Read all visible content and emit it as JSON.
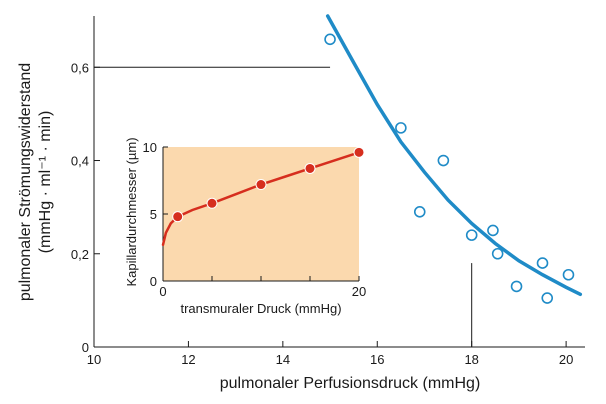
{
  "chart_data": [
    {
      "type": "scatter",
      "xlabel": "pulmonaler Perfusionsdruck (mmHg)",
      "ylabel_line1": "pulmonaler Strömungswiderstand",
      "ylabel_line2": "(mmHg · ml⁻¹ · min)",
      "xlim": [
        10,
        20.4
      ],
      "ylim": [
        0,
        0.71
      ],
      "x_ticks": [
        {
          "v": 10,
          "label": "10"
        },
        {
          "v": 12,
          "label": "12"
        },
        {
          "v": 14,
          "label": "14"
        },
        {
          "v": 16,
          "label": "16"
        },
        {
          "v": 18,
          "label": "18"
        },
        {
          "v": 20,
          "label": "20"
        }
      ],
      "y_ticks": [
        {
          "v": 0,
          "label": "0"
        },
        {
          "v": 0.2,
          "label": "0,2"
        },
        {
          "v": 0.4,
          "label": "0,4"
        },
        {
          "v": 0.6,
          "label": "0,6"
        }
      ],
      "points": [
        {
          "x": 15.0,
          "y": 0.66
        },
        {
          "x": 16.5,
          "y": 0.47
        },
        {
          "x": 16.9,
          "y": 0.29
        },
        {
          "x": 17.4,
          "y": 0.4
        },
        {
          "x": 18.0,
          "y": 0.24
        },
        {
          "x": 18.45,
          "y": 0.25
        },
        {
          "x": 18.55,
          "y": 0.2
        },
        {
          "x": 18.95,
          "y": 0.13
        },
        {
          "x": 19.5,
          "y": 0.18
        },
        {
          "x": 19.6,
          "y": 0.105
        },
        {
          "x": 20.05,
          "y": 0.155
        }
      ],
      "fit_curve": [
        {
          "x": 14.95,
          "y": 0.71
        },
        {
          "x": 15.5,
          "y": 0.61
        },
        {
          "x": 16.0,
          "y": 0.52
        },
        {
          "x": 16.5,
          "y": 0.44
        },
        {
          "x": 17.0,
          "y": 0.375
        },
        {
          "x": 17.5,
          "y": 0.315
        },
        {
          "x": 18.0,
          "y": 0.265
        },
        {
          "x": 18.5,
          "y": 0.222
        },
        {
          "x": 19.0,
          "y": 0.185
        },
        {
          "x": 19.5,
          "y": 0.155
        },
        {
          "x": 20.0,
          "y": 0.128
        },
        {
          "x": 20.3,
          "y": 0.113
        }
      ],
      "reference_lines": [
        {
          "type": "horizontal",
          "y": 0.6,
          "x_from": 10,
          "x_to": 15.0
        },
        {
          "type": "vertical",
          "x": 18.0,
          "y_from": 0,
          "y_to": 0.18
        }
      ],
      "colors": {
        "curve": "#1f8bc7",
        "points": "#1f8bc7"
      }
    },
    {
      "type": "line",
      "inset": true,
      "xlabel": "transmuraler Druck (mmHg)",
      "ylabel": "Kapillardurchmesser (µm)",
      "xlim": [
        0,
        20
      ],
      "ylim": [
        0,
        10
      ],
      "x_ticks": [
        {
          "v": 0,
          "label": "0"
        },
        {
          "v": 20,
          "label": "20"
        }
      ],
      "x_minor_ticks": [
        5,
        10,
        15
      ],
      "y_ticks": [
        {
          "v": 0,
          "label": "0"
        },
        {
          "v": 5,
          "label": "5"
        },
        {
          "v": 10,
          "label": "10"
        }
      ],
      "points": [
        {
          "x": 1.5,
          "y": 4.8
        },
        {
          "x": 5.0,
          "y": 5.8
        },
        {
          "x": 10.0,
          "y": 7.2
        },
        {
          "x": 15.0,
          "y": 8.4
        },
        {
          "x": 20.0,
          "y": 9.6
        }
      ],
      "curve": [
        {
          "x": 0,
          "y": 2.7
        },
        {
          "x": 0.3,
          "y": 3.6
        },
        {
          "x": 0.8,
          "y": 4.3
        },
        {
          "x": 1.5,
          "y": 4.8
        },
        {
          "x": 3,
          "y": 5.3
        },
        {
          "x": 5,
          "y": 5.8
        },
        {
          "x": 7.5,
          "y": 6.5
        },
        {
          "x": 10,
          "y": 7.2
        },
        {
          "x": 12.5,
          "y": 7.8
        },
        {
          "x": 15,
          "y": 8.4
        },
        {
          "x": 17.5,
          "y": 9.0
        },
        {
          "x": 20,
          "y": 9.6
        }
      ],
      "colors": {
        "line": "#d62e1e",
        "points": "#d62e1e",
        "background": "#fbd9ae"
      }
    }
  ]
}
